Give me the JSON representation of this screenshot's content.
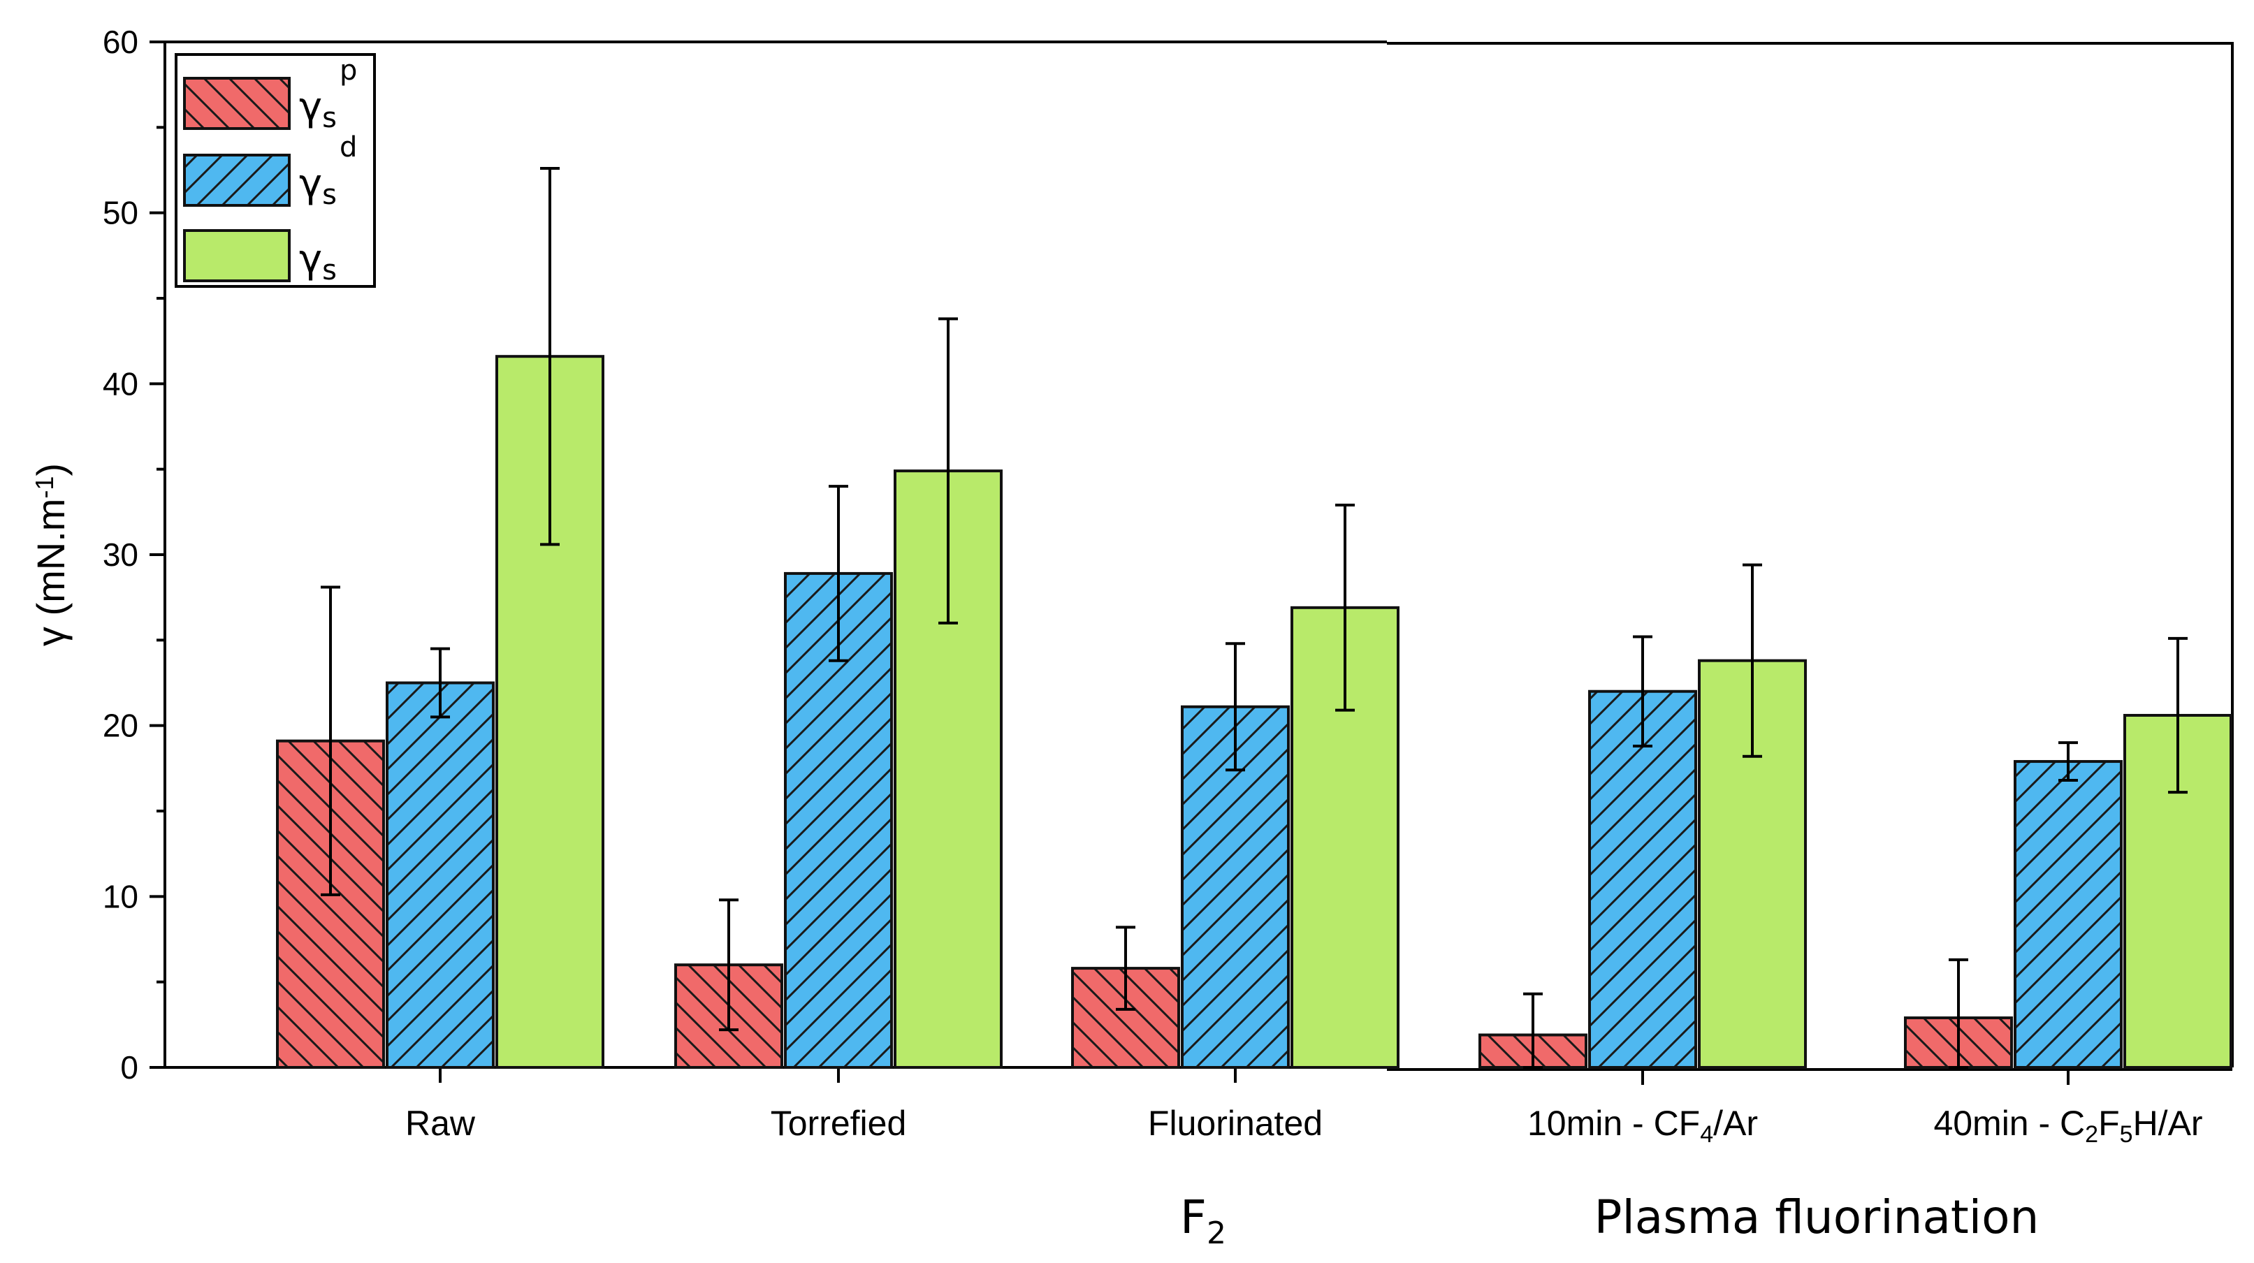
{
  "chart_data": {
    "type": "bar",
    "ylabel": "γ (mN.m",
    "ylabel_sup": "-1",
    "ylabel_end": ")",
    "ylim": [
      0,
      60
    ],
    "yticks": [
      "0",
      "10",
      "20",
      "30",
      "40",
      "50",
      "60"
    ],
    "categories": [
      {
        "parts": [
          {
            "t": "Raw"
          }
        ]
      },
      {
        "parts": [
          {
            "t": "Torrefied"
          }
        ]
      },
      {
        "parts": [
          {
            "t": "Fluorinated"
          }
        ]
      },
      {
        "parts": [
          {
            "t": "10min - CF"
          },
          {
            "t": "4",
            "sub": true
          },
          {
            "t": "/Ar"
          }
        ]
      },
      {
        "parts": [
          {
            "t": "40min - C"
          },
          {
            "t": "2",
            "sub": true
          },
          {
            "t": "F"
          },
          {
            "t": "5",
            "sub": true
          },
          {
            "t": "H/Ar"
          }
        ]
      }
    ],
    "category_names": [
      "Raw",
      "Torrefied",
      "Fluorinated",
      "10min - CF4/Ar",
      "40min - C2F5H/Ar"
    ],
    "group_labels": [
      {
        "main": "F",
        "sub": "2"
      },
      {
        "main": "Plasma fluorination",
        "sub": ""
      }
    ],
    "legend_position": "top-left",
    "series": [
      {
        "name": "γs p",
        "symbol": "γ",
        "sub": "s",
        "sup": "p",
        "color": "#f06a6a",
        "pattern": "backslash-hatch",
        "values": [
          19.1,
          6.0,
          5.8,
          1.9,
          2.9
        ],
        "error": [
          9.0,
          3.8,
          2.4,
          2.4,
          3.4
        ]
      },
      {
        "name": "γs d",
        "symbol": "γ",
        "sub": "s",
        "sup": "d",
        "color": "#4fb8f0",
        "pattern": "slash-hatch",
        "values": [
          22.5,
          28.9,
          21.1,
          22.0,
          17.9
        ],
        "error": [
          2.0,
          5.1,
          3.7,
          3.2,
          1.1
        ]
      },
      {
        "name": "γs",
        "symbol": "γ",
        "sub": "s",
        "sup": "",
        "color": "#b8ea6a",
        "pattern": "solid",
        "values": [
          41.6,
          34.9,
          26.9,
          23.8,
          20.6
        ],
        "error": [
          11.0,
          8.9,
          6.0,
          5.6,
          4.5
        ]
      }
    ]
  }
}
